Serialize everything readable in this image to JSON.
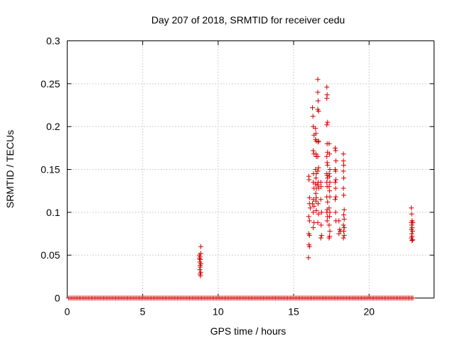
{
  "chart_data": {
    "type": "scatter",
    "title": "Day 207 of 2018, SRMTID for receiver cedu",
    "xlabel": "GPS time / hours",
    "ylabel": "SRMTID / TECUs",
    "xlim": [
      0,
      24.3
    ],
    "ylim": [
      0,
      0.3
    ],
    "xticks": [
      0,
      5,
      10,
      15,
      20
    ],
    "yticks": [
      0,
      0.05,
      0.1,
      0.15,
      0.2,
      0.25,
      0.3
    ],
    "xtick_labels": [
      "0",
      "5",
      "10",
      "15",
      "20"
    ],
    "ytick_labels": [
      "0",
      "0.05",
      "0.1",
      "0.15",
      "0.2",
      "0.25",
      "0.3"
    ],
    "grid": true,
    "marker": "+",
    "color": "#d40000",
    "zero_band": {
      "x_start": 0.1,
      "x_end": 22.9,
      "step": 0.1,
      "y": 0
    },
    "series": [
      {
        "name": "SRMTID",
        "points": [
          [
            8.75,
            0.05
          ],
          [
            8.8,
            0.048
          ],
          [
            8.82,
            0.045
          ],
          [
            8.85,
            0.06
          ],
          [
            8.85,
            0.052
          ],
          [
            8.78,
            0.042
          ],
          [
            8.8,
            0.038
          ],
          [
            8.82,
            0.036
          ],
          [
            8.78,
            0.033
          ],
          [
            8.85,
            0.03
          ],
          [
            8.8,
            0.028
          ],
          [
            8.83,
            0.026
          ],
          [
            8.76,
            0.046
          ],
          [
            8.86,
            0.04
          ],
          [
            16.0,
            0.142
          ],
          [
            16.02,
            0.138
          ],
          [
            16.05,
            0.117
          ],
          [
            16.05,
            0.11
          ],
          [
            16.0,
            0.095
          ],
          [
            16.05,
            0.09
          ],
          [
            16.0,
            0.075
          ],
          [
            16.05,
            0.073
          ],
          [
            16.02,
            0.062
          ],
          [
            16.05,
            0.06
          ],
          [
            15.98,
            0.047
          ],
          [
            16.1,
            0.105
          ],
          [
            16.25,
            0.222
          ],
          [
            16.28,
            0.212
          ],
          [
            16.3,
            0.2
          ],
          [
            16.35,
            0.19
          ],
          [
            16.3,
            0.172
          ],
          [
            16.35,
            0.168
          ],
          [
            16.32,
            0.145
          ],
          [
            16.3,
            0.135
          ],
          [
            16.35,
            0.128
          ],
          [
            16.3,
            0.115
          ],
          [
            16.25,
            0.11
          ],
          [
            16.35,
            0.107
          ],
          [
            16.3,
            0.1
          ],
          [
            16.35,
            0.088
          ],
          [
            16.3,
            0.082
          ],
          [
            16.45,
            0.198
          ],
          [
            16.48,
            0.192
          ],
          [
            16.45,
            0.185
          ],
          [
            16.5,
            0.183
          ],
          [
            16.48,
            0.168
          ],
          [
            16.5,
            0.165
          ],
          [
            16.45,
            0.15
          ],
          [
            16.5,
            0.145
          ],
          [
            16.48,
            0.14
          ],
          [
            16.45,
            0.133
          ],
          [
            16.5,
            0.128
          ],
          [
            16.47,
            0.122
          ],
          [
            16.5,
            0.117
          ],
          [
            16.48,
            0.113
          ],
          [
            16.5,
            0.102
          ],
          [
            16.6,
            0.255
          ],
          [
            16.6,
            0.24
          ],
          [
            16.62,
            0.23
          ],
          [
            16.6,
            0.22
          ],
          [
            16.65,
            0.218
          ],
          [
            16.65,
            0.183
          ],
          [
            16.62,
            0.182
          ],
          [
            16.6,
            0.165
          ],
          [
            16.65,
            0.152
          ],
          [
            16.6,
            0.148
          ],
          [
            16.62,
            0.135
          ],
          [
            16.6,
            0.132
          ],
          [
            16.65,
            0.128
          ],
          [
            16.62,
            0.11
          ],
          [
            16.65,
            0.098
          ],
          [
            16.6,
            0.088
          ],
          [
            16.8,
            0.135
          ],
          [
            16.82,
            0.13
          ],
          [
            16.8,
            0.115
          ],
          [
            16.85,
            0.1
          ],
          [
            16.82,
            0.085
          ],
          [
            16.85,
            0.073
          ],
          [
            16.8,
            0.07
          ],
          [
            17.2,
            0.246
          ],
          [
            17.22,
            0.237
          ],
          [
            17.2,
            0.233
          ],
          [
            17.25,
            0.205
          ],
          [
            17.2,
            0.202
          ],
          [
            17.22,
            0.18
          ],
          [
            17.25,
            0.17
          ],
          [
            17.2,
            0.165
          ],
          [
            17.22,
            0.158
          ],
          [
            17.25,
            0.155
          ],
          [
            17.2,
            0.145
          ],
          [
            17.22,
            0.143
          ],
          [
            17.25,
            0.14
          ],
          [
            17.2,
            0.135
          ],
          [
            17.22,
            0.13
          ],
          [
            17.2,
            0.118
          ],
          [
            17.25,
            0.112
          ],
          [
            17.22,
            0.103
          ],
          [
            17.2,
            0.1
          ],
          [
            17.25,
            0.095
          ],
          [
            17.22,
            0.09
          ],
          [
            17.35,
            0.18
          ],
          [
            17.38,
            0.168
          ],
          [
            17.4,
            0.15
          ],
          [
            17.35,
            0.145
          ],
          [
            17.38,
            0.142
          ],
          [
            17.4,
            0.135
          ],
          [
            17.35,
            0.13
          ],
          [
            17.38,
            0.125
          ],
          [
            17.4,
            0.118
          ],
          [
            17.35,
            0.105
          ],
          [
            17.4,
            0.1
          ],
          [
            17.38,
            0.095
          ],
          [
            17.35,
            0.085
          ],
          [
            17.4,
            0.078
          ],
          [
            17.38,
            0.072
          ],
          [
            17.35,
            0.07
          ],
          [
            17.75,
            0.175
          ],
          [
            17.78,
            0.172
          ],
          [
            17.8,
            0.16
          ],
          [
            17.75,
            0.15
          ],
          [
            17.78,
            0.148
          ],
          [
            17.8,
            0.138
          ],
          [
            17.75,
            0.135
          ],
          [
            17.78,
            0.128
          ],
          [
            17.8,
            0.118
          ],
          [
            17.75,
            0.115
          ],
          [
            17.78,
            0.1
          ],
          [
            17.8,
            0.09
          ],
          [
            18.0,
            0.09
          ],
          [
            18.05,
            0.08
          ],
          [
            18.0,
            0.075
          ],
          [
            18.1,
            0.078
          ],
          [
            18.3,
            0.168
          ],
          [
            18.3,
            0.16
          ],
          [
            18.32,
            0.155
          ],
          [
            18.3,
            0.148
          ],
          [
            18.32,
            0.14
          ],
          [
            18.3,
            0.128
          ],
          [
            18.32,
            0.12
          ],
          [
            18.35,
            0.103
          ],
          [
            18.32,
            0.097
          ],
          [
            18.35,
            0.092
          ],
          [
            18.3,
            0.085
          ],
          [
            18.35,
            0.082
          ],
          [
            18.32,
            0.078
          ],
          [
            18.35,
            0.073
          ],
          [
            18.3,
            0.07
          ],
          [
            22.8,
            0.105
          ],
          [
            22.82,
            0.098
          ],
          [
            22.85,
            0.09
          ],
          [
            22.8,
            0.088
          ],
          [
            22.9,
            0.088
          ],
          [
            22.82,
            0.085
          ],
          [
            22.85,
            0.082
          ],
          [
            22.8,
            0.08
          ],
          [
            22.88,
            0.078
          ],
          [
            22.82,
            0.075
          ],
          [
            22.85,
            0.072
          ],
          [
            22.8,
            0.07
          ],
          [
            22.88,
            0.068
          ],
          [
            22.84,
            0.067
          ]
        ]
      }
    ]
  }
}
